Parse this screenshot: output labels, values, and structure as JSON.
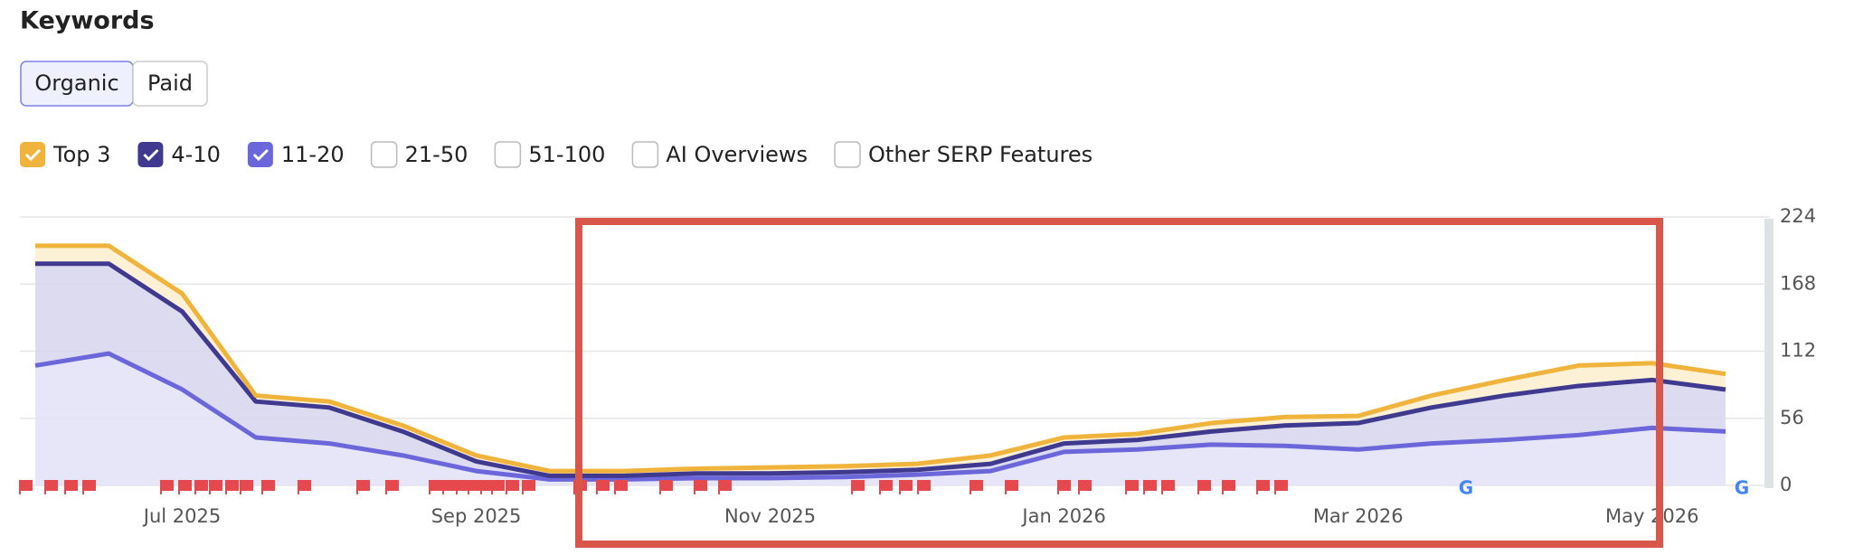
{
  "chart_data": {
    "type": "stacked_area",
    "title": "Keywords",
    "tabs": [
      "Organic",
      "Paid"
    ],
    "filters": [
      "21-50",
      "51-100",
      "AI Overviews",
      "Other SERP Features"
    ],
    "categories": [
      null,
      null,
      "Jul 2025",
      null,
      null,
      null,
      "Sep 2025",
      null,
      null,
      null,
      "Nov 2025",
      null,
      null,
      null,
      "Jan 2026",
      null,
      null,
      null,
      "Mar 2026",
      null,
      null,
      null,
      "May 2026",
      null
    ],
    "series": [
      {
        "name": "Top 3",
        "color": "#f0b43c",
        "values": [
          15,
          15,
          15,
          5,
          5,
          5,
          5,
          4,
          4,
          4,
          5,
          5,
          5,
          7,
          5,
          5,
          7,
          7,
          6,
          10,
          13,
          17,
          14,
          13
        ]
      },
      {
        "name": "4-10",
        "color": "#3f3a8f",
        "values": [
          85,
          75,
          65,
          30,
          30,
          20,
          8,
          3,
          3,
          4,
          4,
          4,
          4,
          6,
          7,
          8,
          11,
          17,
          22,
          30,
          37,
          41,
          40,
          35
        ]
      },
      {
        "name": "11-20",
        "color": "#6b67da",
        "values": [
          100,
          110,
          80,
          40,
          35,
          25,
          12,
          5,
          5,
          6,
          6,
          7,
          9,
          12,
          28,
          30,
          34,
          33,
          30,
          35,
          38,
          42,
          48,
          45
        ]
      }
    ],
    "ylim": [
      0,
      224
    ],
    "yticks": [
      0,
      56,
      112,
      168,
      224
    ],
    "grid": true
  }
}
